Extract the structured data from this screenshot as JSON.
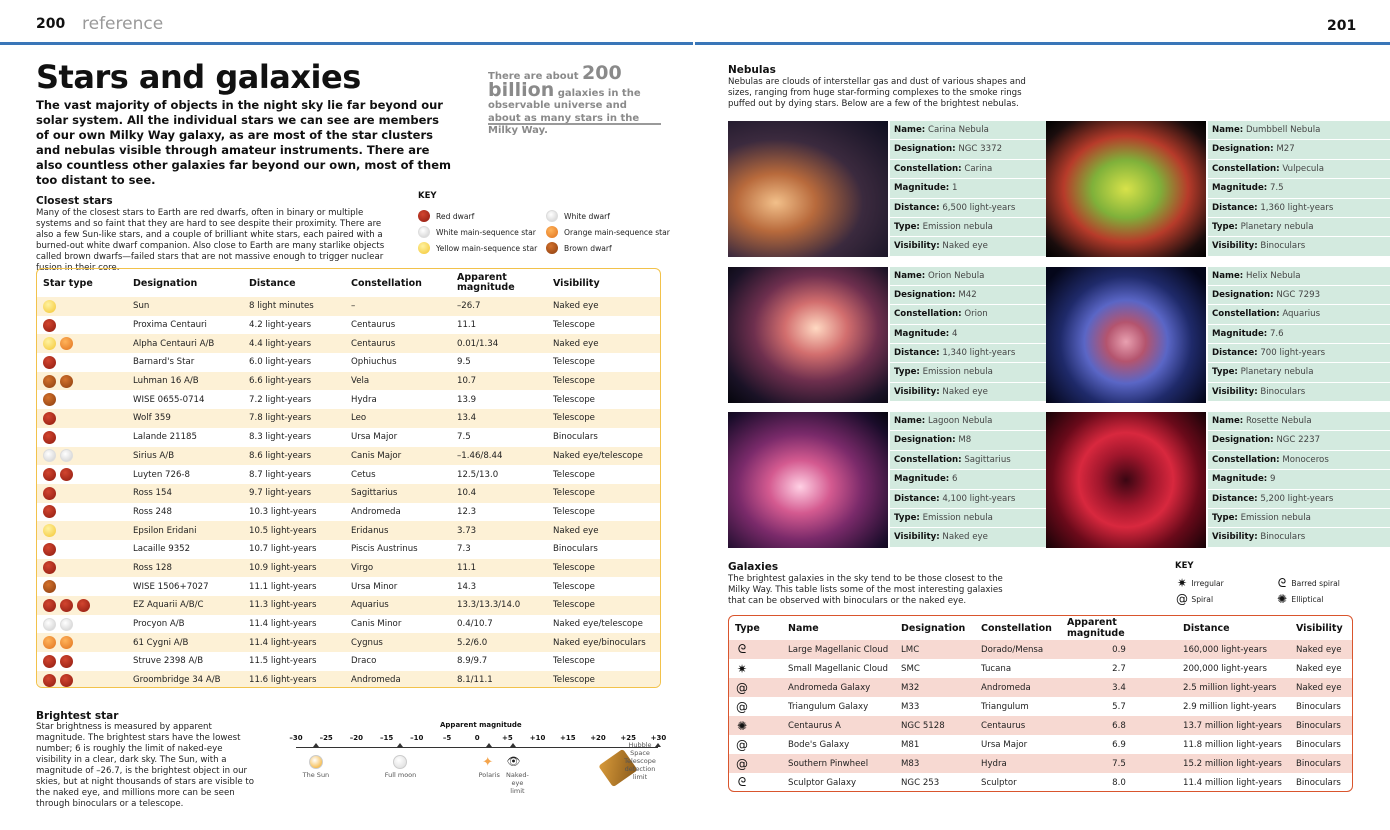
{
  "left_page": {
    "number": "200",
    "section": "reference"
  },
  "right_page": {
    "number": "201"
  },
  "title": "Stars and galaxies",
  "intro": "The vast majority of objects in the night sky lie far beyond our solar system. All the individual stars we can see are members of our own Milky Way galaxy, as are most of the star clusters and nebulas visible through amateur instruments. There are also countless other galaxies far beyond our own, most of them too distant to see.",
  "callout": {
    "pre": "There are about ",
    "big": "200 billion",
    "post": " galaxies in the observable universe and about as many stars in the Milky Way."
  },
  "closest": {
    "heading": "Closest stars",
    "text": "Many of the closest stars to Earth are red dwarfs, often in binary or multiple systems and so faint that they are hard to see despite their proximity. There are also a few Sun-like stars, and a couple of brilliant white stars, each paired with a burned-out white dwarf companion. Also close to Earth are many starlike objects called brown dwarfs—failed stars that are not massive enough to trigger nuclear fusion in their core."
  },
  "star_key": {
    "heading": "KEY",
    "items": [
      {
        "label": "Red dwarf",
        "color": "red"
      },
      {
        "label": "White dwarf",
        "color": "white"
      },
      {
        "label": "White main-sequence star",
        "color": "white"
      },
      {
        "label": "Orange main-sequence star",
        "color": "orange"
      },
      {
        "label": "Yellow main-sequence star",
        "color": "yellow"
      },
      {
        "label": "Brown dwarf",
        "color": "brown"
      }
    ]
  },
  "stars_table": {
    "headers": [
      "Star type",
      "Designation",
      "Distance",
      "Constellation",
      "Apparent magnitude",
      "Visibility"
    ],
    "rows": [
      {
        "types": [
          "yellow"
        ],
        "designation": "Sun",
        "distance": "8 light minutes",
        "constellation": "–",
        "magnitude": "–26.7",
        "visibility": "Naked eye"
      },
      {
        "types": [
          "red"
        ],
        "designation": "Proxima Centauri",
        "distance": "4.2 light-years",
        "constellation": "Centaurus",
        "magnitude": "11.1",
        "visibility": "Telescope"
      },
      {
        "types": [
          "yellow",
          "orange"
        ],
        "designation": "Alpha Centauri A/B",
        "distance": "4.4 light-years",
        "constellation": "Centaurus",
        "magnitude": "0.01/1.34",
        "visibility": "Naked eye"
      },
      {
        "types": [
          "red"
        ],
        "designation": "Barnard's Star",
        "distance": "6.0 light-years",
        "constellation": "Ophiuchus",
        "magnitude": "9.5",
        "visibility": "Telescope"
      },
      {
        "types": [
          "brown",
          "brown"
        ],
        "designation": "Luhman 16 A/B",
        "distance": "6.6 light-years",
        "constellation": "Vela",
        "magnitude": "10.7",
        "visibility": "Telescope"
      },
      {
        "types": [
          "brown"
        ],
        "designation": "WISE 0655-0714",
        "distance": "7.2 light-years",
        "constellation": "Hydra",
        "magnitude": "13.9",
        "visibility": "Telescope"
      },
      {
        "types": [
          "red"
        ],
        "designation": "Wolf 359",
        "distance": "7.8 light-years",
        "constellation": "Leo",
        "magnitude": "13.4",
        "visibility": "Telescope"
      },
      {
        "types": [
          "red"
        ],
        "designation": "Lalande 21185",
        "distance": "8.3 light-years",
        "constellation": "Ursa Major",
        "magnitude": "7.5",
        "visibility": "Binoculars"
      },
      {
        "types": [
          "white",
          "white"
        ],
        "designation": "Sirius A/B",
        "distance": "8.6 light-years",
        "constellation": "Canis Major",
        "magnitude": "–1.46/8.44",
        "visibility": "Naked eye/telescope"
      },
      {
        "types": [
          "red",
          "red"
        ],
        "designation": "Luyten 726-8",
        "distance": "8.7 light-years",
        "constellation": "Cetus",
        "magnitude": "12.5/13.0",
        "visibility": "Telescope"
      },
      {
        "types": [
          "red"
        ],
        "designation": "Ross 154",
        "distance": "9.7 light-years",
        "constellation": "Sagittarius",
        "magnitude": "10.4",
        "visibility": "Telescope"
      },
      {
        "types": [
          "red"
        ],
        "designation": "Ross 248",
        "distance": "10.3 light-years",
        "constellation": "Andromeda",
        "magnitude": "12.3",
        "visibility": "Telescope"
      },
      {
        "types": [
          "yellow"
        ],
        "designation": "Epsilon Eridani",
        "distance": "10.5 light-years",
        "constellation": "Eridanus",
        "magnitude": "3.73",
        "visibility": "Naked eye"
      },
      {
        "types": [
          "red"
        ],
        "designation": "Lacaille 9352",
        "distance": "10.7 light-years",
        "constellation": "Piscis Austrinus",
        "magnitude": "7.3",
        "visibility": "Binoculars"
      },
      {
        "types": [
          "red"
        ],
        "designation": "Ross 128",
        "distance": "10.9 light-years",
        "constellation": "Virgo",
        "magnitude": "11.1",
        "visibility": "Telescope"
      },
      {
        "types": [
          "brown"
        ],
        "designation": "WISE 1506+7027",
        "distance": "11.1 light-years",
        "constellation": "Ursa Minor",
        "magnitude": "14.3",
        "visibility": "Telescope"
      },
      {
        "types": [
          "red",
          "red",
          "red"
        ],
        "designation": "EZ Aquarii A/B/C",
        "distance": "11.3 light-years",
        "constellation": "Aquarius",
        "magnitude": "13.3/13.3/14.0",
        "visibility": "Telescope"
      },
      {
        "types": [
          "white",
          "white"
        ],
        "designation": "Procyon A/B",
        "distance": "11.4 light-years",
        "constellation": "Canis Minor",
        "magnitude": "0.4/10.7",
        "visibility": "Naked eye/telescope"
      },
      {
        "types": [
          "orange",
          "orange"
        ],
        "designation": "61 Cygni A/B",
        "distance": "11.4 light-years",
        "constellation": "Cygnus",
        "magnitude": "5.2/6.0",
        "visibility": "Naked eye/binoculars"
      },
      {
        "types": [
          "red",
          "red"
        ],
        "designation": "Struve 2398 A/B",
        "distance": "11.5 light-years",
        "constellation": "Draco",
        "magnitude": "8.9/9.7",
        "visibility": "Telescope"
      },
      {
        "types": [
          "red",
          "red"
        ],
        "designation": "Groombridge 34 A/B",
        "distance": "11.6 light-years",
        "constellation": "Andromeda",
        "magnitude": "8.1/11.1",
        "visibility": "Telescope"
      }
    ]
  },
  "brightest": {
    "heading": "Brightest star",
    "text": "Star brightness is measured by apparent magnitude. The brightest stars have the lowest number; 6 is roughly the limit of naked-eye visibility in a clear, dark sky. The Sun, with a magnitude of –26.7, is the brightest object in our skies, but at night thousands of stars are visible to the naked eye, and millions more can be seen through binoculars or a telescope.",
    "scale_title": "Apparent magnitude",
    "ticks": [
      "–30",
      "–25",
      "–20",
      "–15",
      "–10",
      "–5",
      "0",
      "+5",
      "+10",
      "+15",
      "+20",
      "+25",
      "+30"
    ],
    "markers": [
      {
        "label": "The Sun",
        "value": -26.7
      },
      {
        "label": "Full moon",
        "value": -12.7
      },
      {
        "label": "Polaris",
        "value": 2
      },
      {
        "label": "Naked-eye limit",
        "value": 6
      },
      {
        "label": "Hubble Space Telescope detection limit",
        "value": 31
      }
    ]
  },
  "nebulas": {
    "heading": "Nebulas",
    "text": "Nebulas are clouds of interstellar gas and dust of various shapes and sizes, ranging from huge star-forming complexes to the smoke rings puffed out by dying stars. Below are a few of the brightest nebulas.",
    "field_labels": {
      "name": "Name:",
      "designation": "Designation:",
      "constellation": "Constellation:",
      "magnitude": "Magnitude:",
      "distance": "Distance:",
      "type": "Type:",
      "visibility": "Visibility:"
    },
    "items": [
      {
        "name": "Carina Nebula",
        "designation": "NGC 3372",
        "constellation": "Carina",
        "magnitude": "1",
        "distance": "6,500 light-years",
        "type": "Emission nebula",
        "visibility": "Naked eye"
      },
      {
        "name": "Dumbbell Nebula",
        "designation": "M27",
        "constellation": "Vulpecula",
        "magnitude": "7.5",
        "distance": "1,360 light-years",
        "type": "Planetary nebula",
        "visibility": "Binoculars"
      },
      {
        "name": "Orion Nebula",
        "designation": "M42",
        "constellation": "Orion",
        "magnitude": "4",
        "distance": "1,340 light-years",
        "type": "Emission nebula",
        "visibility": "Naked eye"
      },
      {
        "name": "Helix Nebula",
        "designation": "NGC 7293",
        "constellation": "Aquarius",
        "magnitude": "7.6",
        "distance": "700 light-years",
        "type": "Planetary nebula",
        "visibility": "Binoculars"
      },
      {
        "name": "Lagoon Nebula",
        "designation": "M8",
        "constellation": "Sagittarius",
        "magnitude": "6",
        "distance": "4,100 light-years",
        "type": "Emission nebula",
        "visibility": "Naked eye"
      },
      {
        "name": "Rosette Nebula",
        "designation": "NGC 2237",
        "constellation": "Monoceros",
        "magnitude": "9",
        "distance": "5,200 light-years",
        "type": "Emission nebula",
        "visibility": "Binoculars"
      }
    ]
  },
  "galaxies": {
    "heading": "Galaxies",
    "text": "The brightest galaxies in the sky tend to be those closest to the Milky Way. This table lists some of the most interesting galaxies that can be observed with binoculars or the naked eye.",
    "key_heading": "KEY",
    "key": [
      {
        "label": "Irregular",
        "icon": "irregular"
      },
      {
        "label": "Barred spiral",
        "icon": "barred"
      },
      {
        "label": "Spiral",
        "icon": "spiral"
      },
      {
        "label": "Elliptical",
        "icon": "elliptical"
      }
    ],
    "headers": [
      "Type",
      "Name",
      "Designation",
      "Constellation",
      "Apparent magnitude",
      "Distance",
      "Visibility"
    ],
    "rows": [
      {
        "icon": "barred",
        "name": "Large Magellanic Cloud",
        "designation": "LMC",
        "constellation": "Dorado/Mensa",
        "magnitude": "0.9",
        "distance": "160,000 light-years",
        "visibility": "Naked eye"
      },
      {
        "icon": "irregular",
        "name": "Small Magellanic Cloud",
        "designation": "SMC",
        "constellation": "Tucana",
        "magnitude": "2.7",
        "distance": "200,000 light-years",
        "visibility": "Naked eye"
      },
      {
        "icon": "spiral",
        "name": "Andromeda Galaxy",
        "designation": "M32",
        "constellation": "Andromeda",
        "magnitude": "3.4",
        "distance": "2.5 million light-years",
        "visibility": "Naked eye"
      },
      {
        "icon": "spiral",
        "name": "Triangulum Galaxy",
        "designation": "M33",
        "constellation": "Triangulum",
        "magnitude": "5.7",
        "distance": "2.9 million light-years",
        "visibility": "Binoculars"
      },
      {
        "icon": "elliptical",
        "name": "Centaurus A",
        "designation": "NGC 5128",
        "constellation": "Centaurus",
        "magnitude": "6.8",
        "distance": "13.7 million light-years",
        "visibility": "Binoculars"
      },
      {
        "icon": "spiral",
        "name": "Bode's Galaxy",
        "designation": "M81",
        "constellation": "Ursa Major",
        "magnitude": "6.9",
        "distance": "11.8 million light-years",
        "visibility": "Binoculars"
      },
      {
        "icon": "spiral",
        "name": "Southern Pinwheel",
        "designation": "M83",
        "constellation": "Hydra",
        "magnitude": "7.5",
        "distance": "15.2 million light-years",
        "visibility": "Binoculars"
      },
      {
        "icon": "barred",
        "name": "Sculptor Galaxy",
        "designation": "NGC 253",
        "constellation": "Sculptor",
        "magnitude": "8.0",
        "distance": "11.4 million light-years",
        "visibility": "Binoculars"
      }
    ]
  }
}
